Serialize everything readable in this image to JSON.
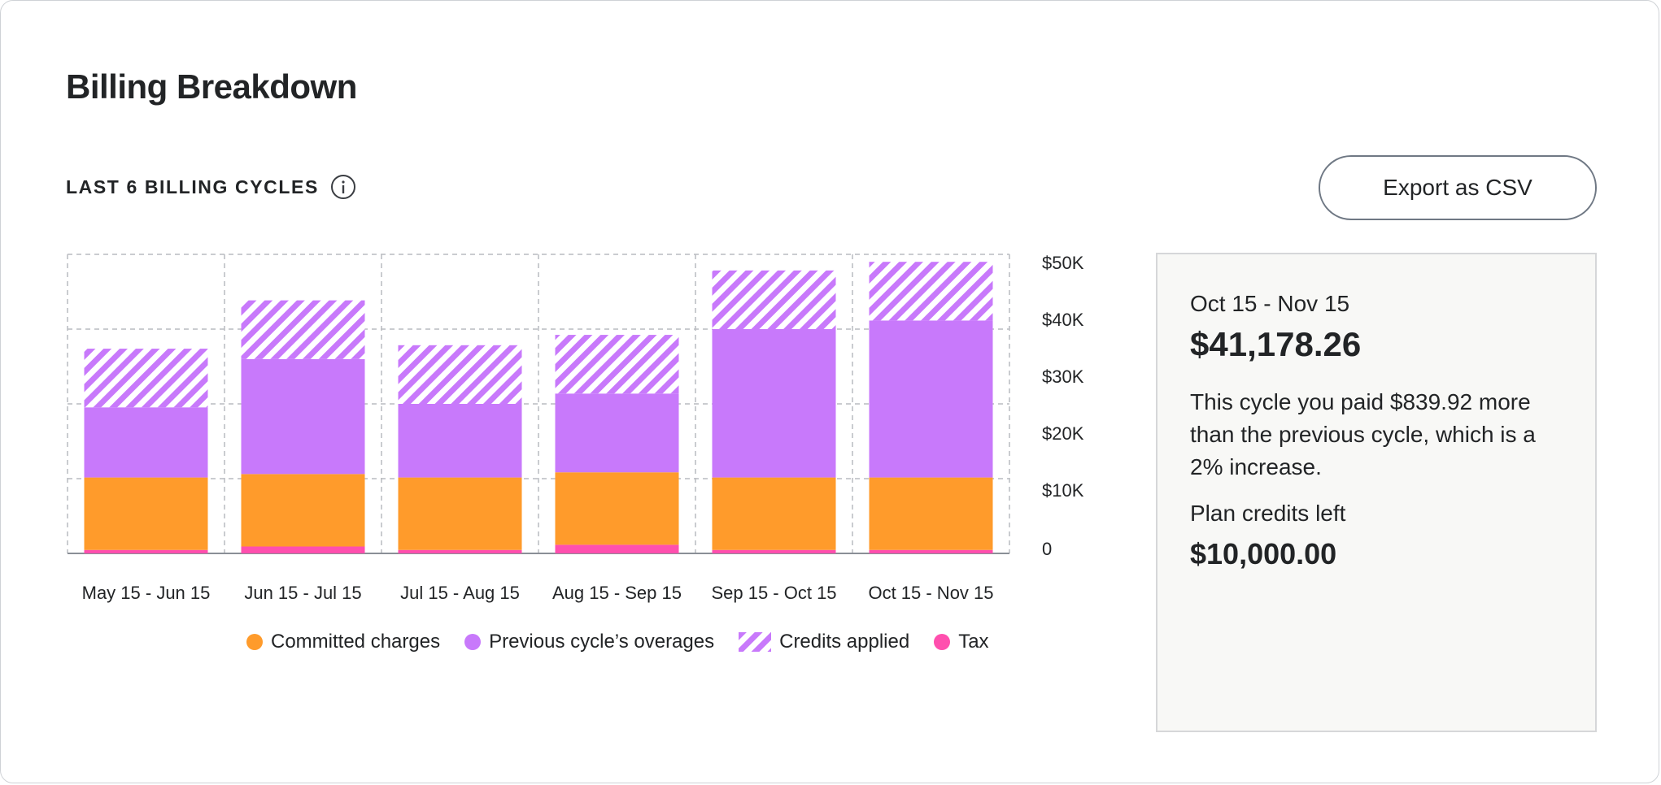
{
  "title": "Billing Breakdown",
  "subtitle": "LAST 6 BILLING CYCLES",
  "export_label": "Export as CSV",
  "colors": {
    "committed": "#ff9b2b",
    "overages": "#c879fb",
    "credits": "#c879fb",
    "tax": "#ff4fae",
    "grid": "#b9bcc0",
    "axis": "#8a8f96"
  },
  "icons": {
    "info": "info-icon"
  },
  "summary": {
    "period": "Oct 15 - Nov 15",
    "amount": "$41,178.26",
    "description": "This cycle you paid $839.92 more than the previous cycle, which is a 2% increase.",
    "credits_label": "Plan credits left",
    "credits_value": "$10,000.00"
  },
  "chart_data": {
    "type": "bar",
    "stacked": true,
    "categories": [
      "May 15 - Jun 15",
      "Jun 15 - Jul 15",
      "Jul 15 - Aug 15",
      "Aug 15 - Sep 15",
      "Sep 15 - Oct 15",
      "Oct 15 - Nov 15"
    ],
    "series": [
      {
        "name": "Tax",
        "key": "tax",
        "values": [
          600,
          1200,
          600,
          1500,
          600,
          600
        ]
      },
      {
        "name": "Committed charges",
        "key": "committed",
        "values": [
          12600,
          12600,
          12600,
          12600,
          12600,
          12600
        ]
      },
      {
        "name": "Previous cycle’s overages",
        "key": "overages",
        "values": [
          12200,
          20000,
          12800,
          13700,
          25800,
          27300
        ]
      },
      {
        "name": "Credits applied",
        "key": "credits",
        "values": [
          10200,
          10200,
          10200,
          10200,
          10200,
          10200
        ]
      }
    ],
    "yticks": [
      "$50K",
      "$40K",
      "$30K",
      "$20K",
      "$10K",
      "0"
    ],
    "ylim": [
      0,
      50000
    ],
    "grid": true
  }
}
